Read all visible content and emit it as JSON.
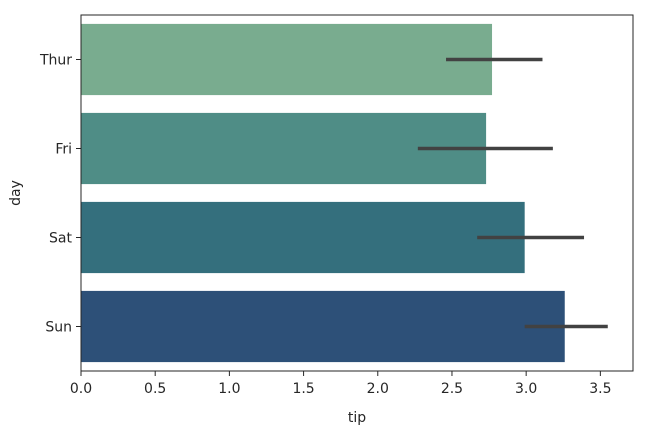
{
  "chart_data": {
    "type": "bar",
    "orientation": "horizontal",
    "categories": [
      "Thur",
      "Fri",
      "Sat",
      "Sun"
    ],
    "values": [
      2.77,
      2.73,
      2.99,
      3.26
    ],
    "ci": [
      [
        2.46,
        3.11
      ],
      [
        2.27,
        3.18
      ],
      [
        2.67,
        3.39
      ],
      [
        2.99,
        3.55
      ]
    ],
    "colors": [
      "#79ac8f",
      "#4f8d86",
      "#346f7d",
      "#2d5078"
    ],
    "error_color": "#424242",
    "xlabel": "tip",
    "ylabel": "day",
    "xlim": [
      0,
      3.72
    ],
    "xticks": [
      0.0,
      0.5,
      1.0,
      1.5,
      2.0,
      2.5,
      3.0,
      3.5
    ],
    "xtick_labels": [
      "0.0",
      "0.5",
      "1.0",
      "1.5",
      "2.0",
      "2.5",
      "3.0",
      "3.5"
    ],
    "grid": false,
    "legend": false
  }
}
